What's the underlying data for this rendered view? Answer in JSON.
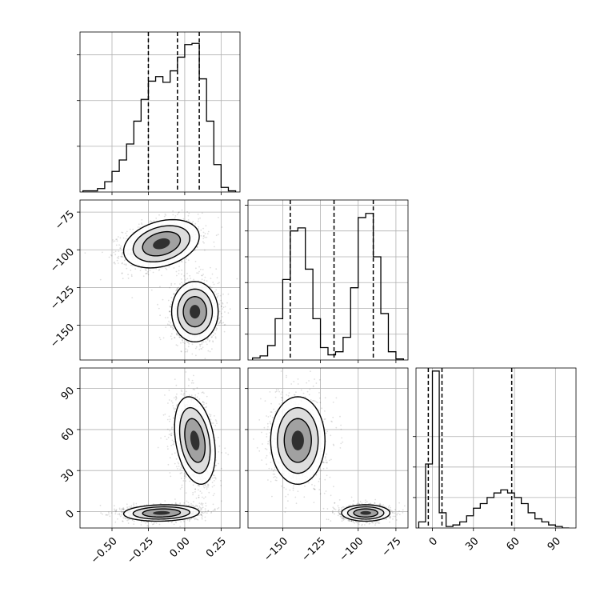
{
  "chart_data": {
    "type": "corner",
    "grid": true,
    "parameters": [
      {
        "range": [
          -0.72,
          0.38
        ],
        "ticks": [
          -0.5,
          -0.25,
          0.0,
          0.25
        ],
        "tick_labels": [
          "−0.50",
          "−0.25",
          "0.00",
          "0.25"
        ],
        "quantiles": [
          -0.25,
          -0.05,
          0.1
        ],
        "histogram": {
          "edges": [
            -0.7,
            -0.65,
            -0.6,
            -0.55,
            -0.5,
            -0.45,
            -0.4,
            -0.35,
            -0.3,
            -0.25,
            -0.2,
            -0.15,
            -0.1,
            -0.05,
            0.0,
            0.05,
            0.1,
            0.15,
            0.2,
            0.25,
            0.3,
            0.35
          ],
          "counts": [
            1,
            1,
            3,
            9,
            18,
            28,
            42,
            62,
            81,
            97,
            101,
            96,
            106,
            118,
            129,
            130,
            99,
            62,
            24,
            4,
            1
          ],
          "ymax": 140,
          "yticks": [
            40,
            80,
            120
          ]
        }
      },
      {
        "range": [
          -173,
          -67
        ],
        "ticks": [
          -150,
          -125,
          -100,
          -75
        ],
        "tick_labels": [
          "−150",
          "−125",
          "−100",
          "−75"
        ],
        "quantiles": [
          -145,
          -116,
          -90
        ],
        "histogram": {
          "edges": [
            -170,
            -165,
            -160,
            -155,
            -150,
            -145,
            -140,
            -135,
            -130,
            -125,
            -120,
            -115,
            -110,
            -105,
            -100,
            -95,
            -90,
            -85,
            -80,
            -75,
            -70
          ],
          "counts": [
            2,
            4,
            14,
            40,
            78,
            125,
            128,
            88,
            40,
            12,
            5,
            8,
            22,
            70,
            138,
            142,
            100,
            45,
            8,
            1
          ],
          "ymax": 155,
          "yticks": [
            25,
            50,
            75,
            100,
            125,
            150
          ]
        }
      },
      {
        "range": [
          -12,
          105
        ],
        "ticks": [
          0,
          30,
          60,
          90
        ],
        "tick_labels": [
          "0",
          "30",
          "60",
          "90"
        ],
        "quantiles": [
          -3,
          7,
          58
        ],
        "histogram": {
          "edges": [
            -10,
            -5,
            0,
            5,
            10,
            15,
            20,
            25,
            30,
            35,
            40,
            45,
            50,
            55,
            60,
            65,
            70,
            75,
            80,
            85,
            90,
            95,
            100
          ],
          "counts": [
            4,
            42,
            103,
            10,
            1,
            2,
            4,
            8,
            13,
            16,
            20,
            23,
            25,
            23,
            20,
            16,
            10,
            6,
            4,
            2,
            1,
            0
          ],
          "ymax": 105,
          "yticks": [
            20,
            40,
            60
          ]
        }
      }
    ],
    "pairs": [
      {
        "x": 0,
        "y": 1,
        "clusters": [
          {
            "cx": -0.16,
            "cy": -96,
            "sx": 0.13,
            "sy": 8,
            "rho": 0.3,
            "n": 1500
          },
          {
            "cx": 0.07,
            "cy": -141,
            "sx": 0.08,
            "sy": 10,
            "rho": 0.0,
            "n": 1500
          }
        ]
      },
      {
        "x": 0,
        "y": 2,
        "clusters": [
          {
            "cx": 0.07,
            "cy": 52,
            "sx": 0.07,
            "sy": 16,
            "rho": -0.3,
            "n": 1500
          },
          {
            "cx": -0.16,
            "cy": -1,
            "sx": 0.13,
            "sy": 3,
            "rho": 0.1,
            "n": 1500
          }
        ]
      },
      {
        "x": 1,
        "y": 2,
        "clusters": [
          {
            "cx": -140,
            "cy": 52,
            "sx": 9,
            "sy": 16,
            "rho": 0.0,
            "n": 1500
          },
          {
            "cx": -95,
            "cy": -1,
            "sx": 8,
            "sy": 3,
            "rho": 0.0,
            "n": 1500
          }
        ]
      }
    ],
    "contour_levels_sigma": [
      1.0,
      1.5,
      2.0
    ]
  }
}
